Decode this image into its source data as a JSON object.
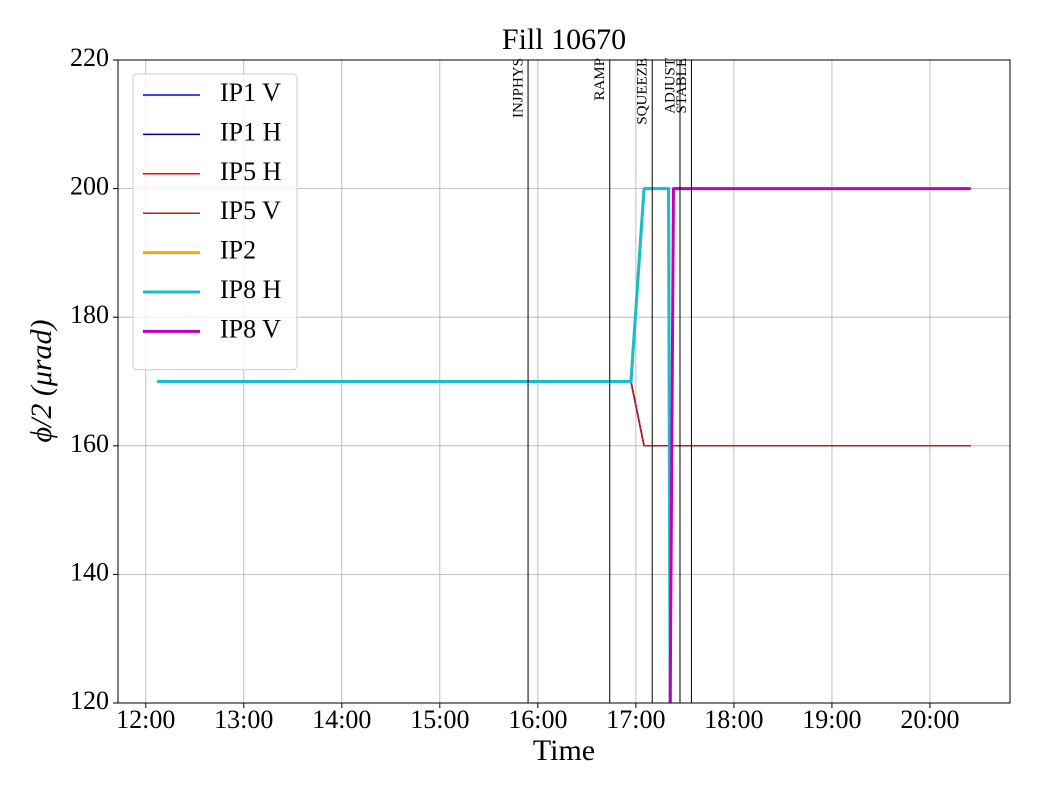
{
  "chart_data": {
    "type": "line",
    "title": "Fill 10670",
    "xlabel": "Time",
    "ylabel": "ϕ/2 (μrad)",
    "xlim": [
      "11:43",
      "20:49"
    ],
    "xticks": [
      "12:00",
      "13:00",
      "14:00",
      "15:00",
      "16:00",
      "17:00",
      "18:00",
      "19:00",
      "20:00"
    ],
    "ylim": [
      120,
      220
    ],
    "yticks": [
      120,
      140,
      160,
      180,
      200,
      220
    ],
    "grid": true,
    "legend": "upper left",
    "series": [
      {
        "name": "IP1 V",
        "color": "#0000ff",
        "width": 1.5,
        "x": [
          "12:07",
          "16:57",
          "17:05",
          "20:25"
        ],
        "values": [
          170,
          170,
          160,
          160
        ]
      },
      {
        "name": "IP1 H",
        "color": "#00008b",
        "width": 1.5,
        "x": [
          "12:07",
          "16:57",
          "17:05",
          "20:25"
        ],
        "values": [
          170,
          170,
          160,
          160
        ]
      },
      {
        "name": "IP5 H",
        "color": "#ff0000",
        "width": 1.5,
        "x": [
          "12:07",
          "16:57",
          "17:05",
          "20:25"
        ],
        "values": [
          170,
          170,
          160,
          160
        ]
      },
      {
        "name": "IP5 V",
        "color": "#b22222",
        "width": 1.5,
        "x": [
          "12:07",
          "16:57",
          "17:05",
          "20:25"
        ],
        "values": [
          170,
          170,
          160,
          160
        ]
      },
      {
        "name": "IP2",
        "color": "#ffa500",
        "width": 3,
        "x": [
          "12:07",
          "16:57",
          "17:05",
          "17:20",
          "17:21"
        ],
        "values": [
          170,
          170,
          200,
          200,
          120
        ]
      },
      {
        "name": "IP8 H",
        "color": "#17becf",
        "width": 3,
        "x": [
          "12:07",
          "16:57",
          "17:05",
          "17:20",
          "17:21"
        ],
        "values": [
          170,
          170,
          200,
          200,
          120
        ]
      },
      {
        "name": "IP8 V",
        "color": "#bf00bf",
        "width": 3,
        "x": [
          "17:21",
          "17:23",
          "20:25"
        ],
        "values": [
          120,
          200,
          200
        ]
      }
    ],
    "markers": [
      {
        "label": "INJPHYS",
        "x": "15:54"
      },
      {
        "label": "RAMP",
        "x": "16:44"
      },
      {
        "label": "SQUEEZE",
        "x": "17:10"
      },
      {
        "label": "ADJUST",
        "x": "17:27"
      },
      {
        "label": "STABLE",
        "x": "17:34"
      }
    ]
  }
}
